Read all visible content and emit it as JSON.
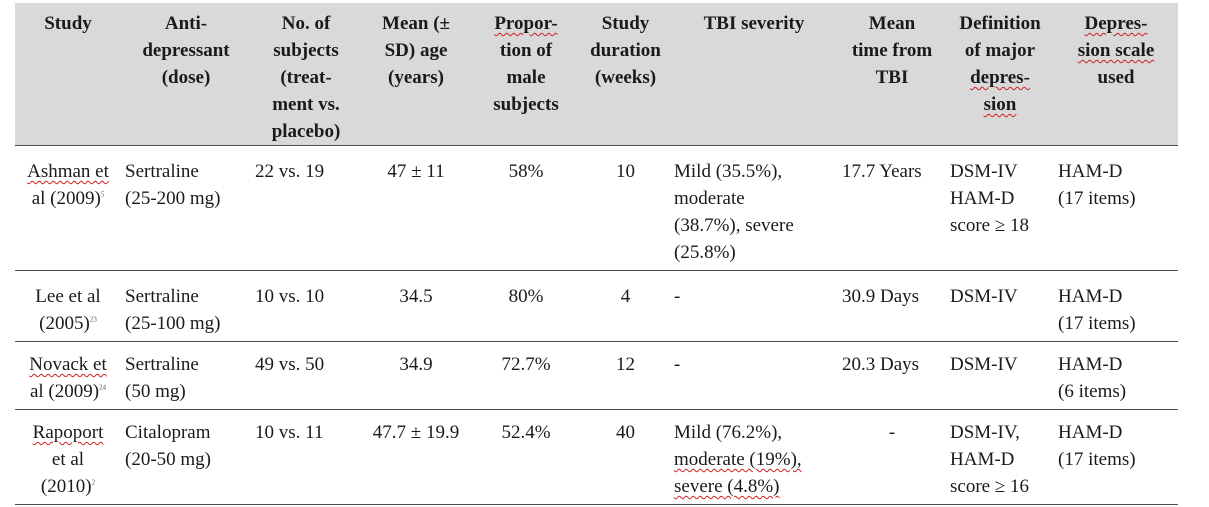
{
  "headers": [
    [
      "Study"
    ],
    [
      "Anti-",
      "depressant",
      "(dose)"
    ],
    [
      "No. of",
      "subjects",
      "(treat-",
      "ment vs.",
      "placebo)"
    ],
    [
      "Mean (±",
      "SD) age",
      "(years)"
    ],
    [
      "Propor-",
      "tion of",
      "male",
      "subjects"
    ],
    [
      "Study",
      "duration",
      "(weeks)"
    ],
    [
      "TBI severity"
    ],
    [
      "Mean",
      "time from",
      "TBI"
    ],
    [
      "Definition",
      "of major",
      "depres-",
      "sion"
    ],
    [
      "Depres-",
      "sion scale",
      "used"
    ]
  ],
  "rows": [
    {
      "study": [
        "Ashman et",
        "al (2009)"
      ],
      "ref": "5",
      "antidepressant": [
        "Sertraline",
        "(25-200 mg)"
      ],
      "subjects": "22 vs. 19",
      "age": "47 ± 11",
      "male": "58%",
      "duration": "10",
      "severity": [
        "Mild (35.5%),",
        "moderate",
        "(38.7%), severe",
        "(25.8%)"
      ],
      "time": "17.7 Years",
      "definition": [
        "DSM-IV",
        "HAM-D",
        "score ≥ 18"
      ],
      "scale": [
        "HAM-D",
        "(17 items)"
      ]
    },
    {
      "study": [
        "Lee et al",
        "(2005)"
      ],
      "ref": "23",
      "antidepressant": [
        "Sertraline",
        "(25-100 mg)"
      ],
      "subjects": "10 vs. 10",
      "age": "34.5",
      "male": "80%",
      "duration": "4",
      "severity": [
        "-"
      ],
      "time": "30.9 Days",
      "definition": [
        "DSM-IV"
      ],
      "scale": [
        "HAM-D",
        "(17 items)"
      ]
    },
    {
      "study": [
        "Novack et",
        "al (2009)"
      ],
      "ref": "24",
      "antidepressant": [
        "Sertraline",
        "(50 mg)"
      ],
      "subjects": "49 vs. 50",
      "age": "34.9",
      "male": "72.7%",
      "duration": "12",
      "severity": [
        "-"
      ],
      "time": "20.3 Days",
      "definition": [
        "DSM-IV"
      ],
      "scale": [
        "HAM-D",
        "(6 items)"
      ]
    },
    {
      "study": [
        "Rapoport",
        "et al",
        "(2010)"
      ],
      "ref": "2",
      "antidepressant": [
        "Citalopram",
        "(20-50 mg)"
      ],
      "subjects": "10 vs. 11",
      "age": "47.7 ± 19.9",
      "male": "52.4%",
      "duration": "40",
      "severity": [
        "Mild (76.2%),",
        "moderate (19%),",
        "severe (4.8%)"
      ],
      "time": "-",
      "definition": [
        "DSM-IV,",
        "HAM-D",
        "score ≥ 16"
      ],
      "scale": [
        "HAM-D",
        "(17 items)"
      ]
    }
  ]
}
